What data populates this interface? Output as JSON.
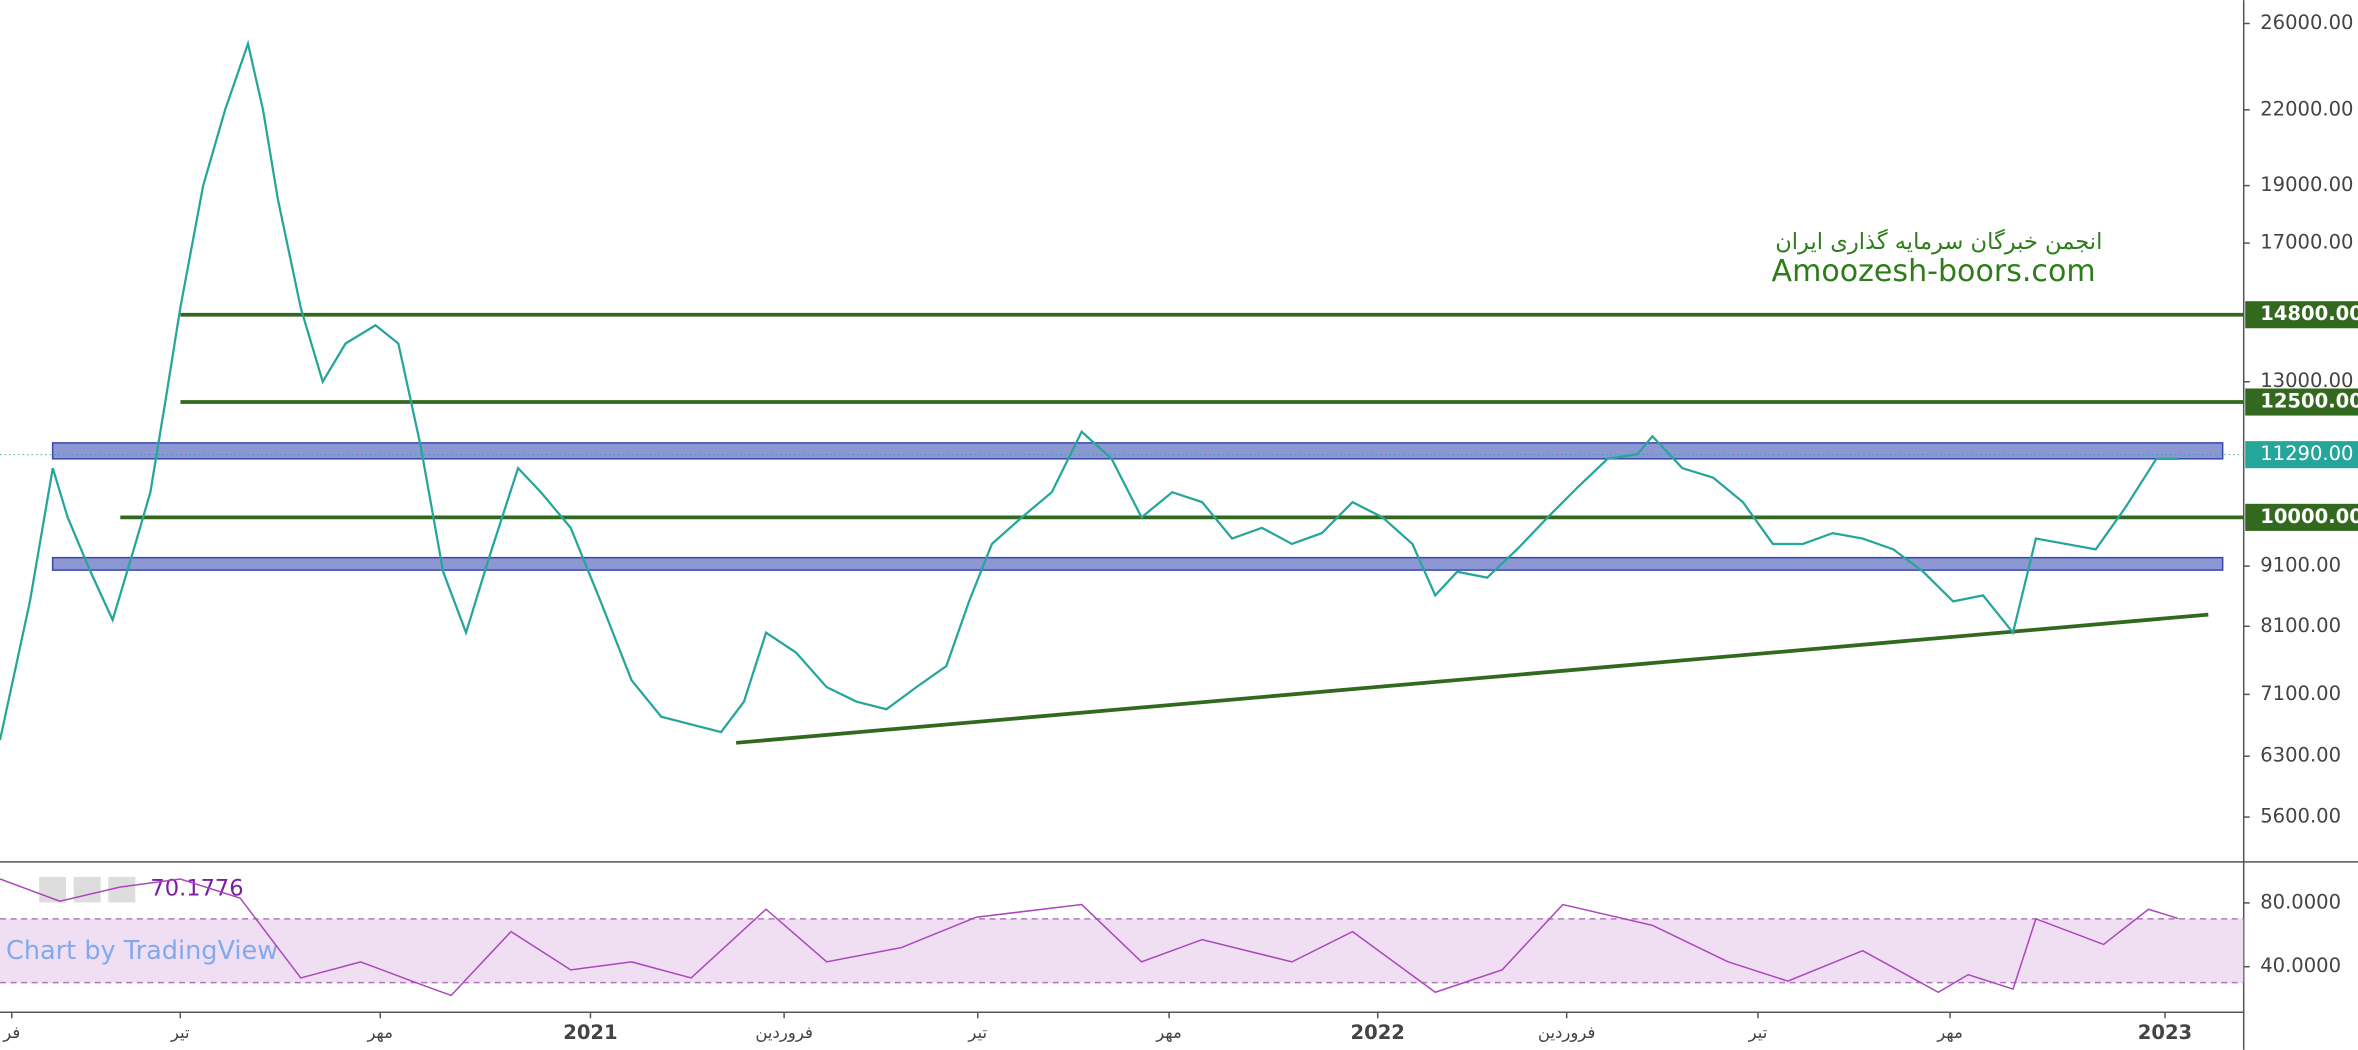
{
  "chart_data": [
    {
      "type": "line",
      "y_scale": "log",
      "watermark": [
        "انجمن خبرگان سرمایه گذاری ایران",
        "Amoozesh-boors.com"
      ],
      "credit": "Chart by TradingView",
      "xlim": [
        2020.25,
        2023.1
      ],
      "ylim": [
        5150,
        27200
      ],
      "xticks": [
        {
          "value": 2020.265,
          "label": "فر"
        },
        {
          "value": 2020.479,
          "label": "تیر"
        },
        {
          "value": 2020.733,
          "label": "مهر"
        },
        {
          "value": 2021,
          "label": "2021"
        },
        {
          "value": 2021.246,
          "label": "فروردین"
        },
        {
          "value": 2021.492,
          "label": "تیر"
        },
        {
          "value": 2021.735,
          "label": "مهر"
        },
        {
          "value": 2022,
          "label": "2022"
        },
        {
          "value": 2022.24,
          "label": "فروردین"
        },
        {
          "value": 2022.483,
          "label": "تیر"
        },
        {
          "value": 2022.727,
          "label": "مهر"
        },
        {
          "value": 2023,
          "label": "2023"
        }
      ],
      "yticks": [
        {
          "value": 26000,
          "label": "26000.00"
        },
        {
          "value": 22000,
          "label": "22000.00"
        },
        {
          "value": 19000,
          "label": "19000.00"
        },
        {
          "value": 17000,
          "label": "17000.00"
        },
        {
          "value": 13000,
          "label": "13000.00"
        },
        {
          "value": 9100,
          "label": "9100.00"
        },
        {
          "value": 8100,
          "label": "8100.00"
        },
        {
          "value": 7100,
          "label": "7100.00"
        },
        {
          "value": 6300,
          "label": "6300.00"
        },
        {
          "value": 5600,
          "label": "5600.00"
        }
      ],
      "x": [
        2020.25,
        2020.288,
        2020.317,
        2020.336,
        2020.365,
        2020.393,
        2020.422,
        2020.441,
        2020.46,
        2020.479,
        2020.508,
        2020.536,
        2020.565,
        2020.584,
        2020.603,
        2020.632,
        2020.66,
        2020.689,
        2020.727,
        2020.756,
        2020.784,
        2020.813,
        2020.842,
        2020.87,
        2020.908,
        2020.937,
        2020.975,
        2021.013,
        2021.052,
        2021.09,
        2021.128,
        2021.166,
        2021.195,
        2021.223,
        2021.261,
        2021.3,
        2021.338,
        2021.376,
        2021.414,
        2021.452,
        2021.481,
        2021.51,
        2021.548,
        2021.586,
        2021.624,
        2021.662,
        2021.7,
        2021.739,
        2021.777,
        2021.815,
        2021.853,
        2021.891,
        2021.929,
        2021.968,
        2022.006,
        2022.044,
        2022.073,
        2022.101,
        2022.139,
        2022.177,
        2022.216,
        2022.254,
        2022.292,
        2022.33,
        2022.349,
        2022.387,
        2022.426,
        2022.464,
        2022.502,
        2022.54,
        2022.578,
        2022.616,
        2022.655,
        2022.693,
        2022.731,
        2022.769,
        2022.807,
        2022.836,
        2022.874,
        2022.912,
        2022.95,
        2022.989,
        2023.017
      ],
      "values": [
        6500,
        8500,
        11000,
        10000,
        9000,
        8200,
        9500,
        10500,
        12500,
        15000,
        19000,
        22000,
        25000,
        22000,
        18500,
        15000,
        13000,
        14000,
        14500,
        14000,
        11500,
        9000,
        8000,
        9200,
        11000,
        10500,
        9800,
        8500,
        7300,
        6800,
        6700,
        6600,
        7000,
        8000,
        7700,
        7200,
        7000,
        6900,
        7200,
        7500,
        8500,
        9500,
        10000,
        10500,
        11800,
        11200,
        10000,
        10500,
        10300,
        9600,
        9800,
        9500,
        9700,
        10300,
        10000,
        9500,
        8600,
        9000,
        8900,
        9400,
        10000,
        10600,
        11200,
        11300,
        11700,
        11000,
        10800,
        10300,
        9500,
        9500,
        9700,
        9600,
        9400,
        9000,
        8500,
        8600,
        8000,
        9600,
        9500,
        9400,
        10200,
        11200,
        11200
      ],
      "color": "#26a69a",
      "levels": {
        "values": [
          14800,
          12500,
          10000
        ],
        "value_labels": [
          "14800.00",
          "12500.00",
          "10000.00"
        ],
        "color": "#33691e"
      },
      "zones": {
        "ranges": [
          [
            11200,
            11550
          ],
          [
            9030,
            9250
          ]
        ],
        "color": "#5c6bc0"
      },
      "last_price": {
        "value": 11290,
        "label": "11290.00",
        "color": "#26a69a"
      },
      "trendline": {
        "x": [
          2021.185,
          2023.055
        ],
        "values": [
          6465,
          8285
        ],
        "color": "#33691e"
      }
    },
    {
      "type": "line",
      "value_label": "70.1776",
      "xlim": [
        2020.25,
        2023.1
      ],
      "ylim": [
        12.4,
        104.8
      ],
      "yticks": [
        {
          "value": 80,
          "label": "80.0000"
        },
        {
          "value": 40,
          "label": "40.0000"
        }
      ],
      "band": [
        30,
        70
      ],
      "color": "#ab47bc",
      "x": [
        2020.25,
        2020.326,
        2020.403,
        2020.479,
        2020.555,
        2020.632,
        2020.708,
        2020.784,
        2020.823,
        2020.899,
        2020.975,
        2021.052,
        2021.128,
        2021.223,
        2021.3,
        2021.395,
        2021.49,
        2021.624,
        2021.7,
        2021.777,
        2021.891,
        2021.968,
        2022.073,
        2022.158,
        2022.235,
        2022.349,
        2022.445,
        2022.521,
        2022.616,
        2022.712,
        2022.75,
        2022.807,
        2022.836,
        2022.922,
        2022.979,
        2023.017
      ],
      "values": [
        95,
        81,
        90,
        95,
        83,
        33,
        43,
        29,
        22,
        62,
        38,
        43,
        33,
        76,
        43,
        52,
        71,
        79,
        43,
        57,
        43,
        62,
        24,
        38,
        79,
        66,
        43,
        31,
        50,
        24,
        35,
        26,
        70,
        54,
        76,
        70.1776
      ]
    }
  ]
}
